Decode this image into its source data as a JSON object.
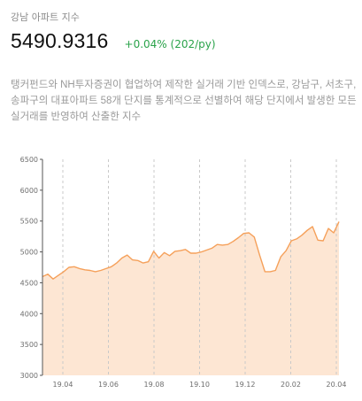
{
  "header": {
    "title": "강남 아파트 지수",
    "value": "5490.9316",
    "change": "+0.04% (202/py)"
  },
  "description": "탱커펀드와 NH투자증권이 협업하여 제작한 실거래 기반 인덱스로, 강남구, 서초구,송파구의 대표아파트 58개 단지를 통계적으로 선별하여 해당 단지에서 발생한 모든 실거래를 반영하여 산출한 지수",
  "colors": {
    "line": "#f5a05a",
    "fill": "#fde6d3",
    "up": "#2aa34a"
  },
  "chart_data": {
    "type": "area",
    "ylim": [
      3000,
      6500
    ],
    "yticks": [
      "6500",
      "6000",
      "5500",
      "5000",
      "4500",
      "4000",
      "3500",
      "3000"
    ],
    "xticks": [
      "19.04",
      "19.06",
      "19.08",
      "19.10",
      "19.12",
      "20.02",
      "20.04"
    ],
    "grid": "dashed vertical lines at x ticks",
    "series": [
      {
        "values": [
          4600,
          4640,
          4560,
          4620,
          4680,
          4750,
          4760,
          4730,
          4710,
          4700,
          4680,
          4700,
          4730,
          4760,
          4820,
          4900,
          4950,
          4870,
          4860,
          4820,
          4840,
          5010,
          4900,
          4990,
          4940,
          5010,
          5020,
          5040,
          4980,
          4980,
          5000,
          5030,
          5060,
          5120,
          5110,
          5120,
          5170,
          5230,
          5300,
          5310,
          5240,
          4950,
          4680,
          4680,
          4700,
          4920,
          5020,
          5180,
          5210,
          5270,
          5350,
          5410,
          5190,
          5180,
          5380,
          5310,
          5490
        ]
      }
    ]
  }
}
